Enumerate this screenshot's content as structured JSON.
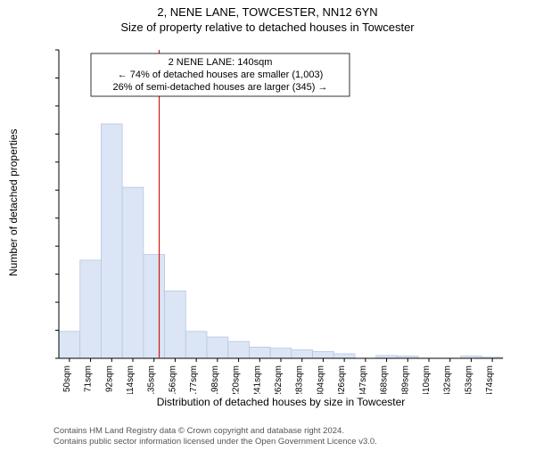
{
  "header": {
    "address": "2, NENE LANE, TOWCESTER, NN12 6YN",
    "subtitle": "Size of property relative to detached houses in Towcester"
  },
  "chart": {
    "type": "histogram",
    "ylabel": "Number of detached properties",
    "xlabel": "Distribution of detached houses by size in Towcester",
    "ylim": [
      0,
      550
    ],
    "ytick_step": 50,
    "xtick_start": 50,
    "xtick_step": 21.2,
    "xtick_count": 21,
    "xtick_unit": "sqm",
    "background_color": "#ffffff",
    "axis_color": "#000000",
    "grid_color": "#cccccc",
    "bar_fill": "#dbe5f5",
    "bar_stroke": "#b6c6e2",
    "tick_fontsize": 10,
    "label_fontsize": 12,
    "bar_values": [
      48,
      175,
      418,
      305,
      185,
      120,
      48,
      38,
      30,
      20,
      18,
      15,
      12,
      8,
      0,
      5,
      4,
      0,
      0,
      4,
      2
    ],
    "marker": {
      "x_sqm": 140,
      "line_color": "#d11919",
      "line_width": 1.2,
      "box_border": "#000000",
      "box_bg": "#ffffff",
      "box_fontsize": 11,
      "lines": [
        "2 NENE LANE: 140sqm",
        "← 74% of detached houses are smaller (1,003)",
        "26% of semi-detached houses are larger (345) →"
      ]
    }
  },
  "footer": {
    "line1": "Contains HM Land Registry data © Crown copyright and database right 2024.",
    "line2": "Contains public sector information licensed under the Open Government Licence v3.0."
  }
}
